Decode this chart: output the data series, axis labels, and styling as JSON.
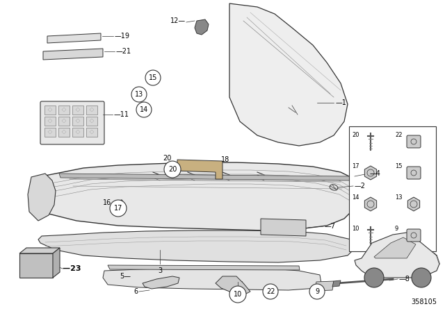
{
  "bg_color": "#ffffff",
  "diagram_number": "358105",
  "line_color": "#333333",
  "light_fill": "#f0f0f0",
  "mid_fill": "#d8d8d8",
  "dark_fill": "#aaaaaa",
  "tan_fill": "#c8b89a"
}
